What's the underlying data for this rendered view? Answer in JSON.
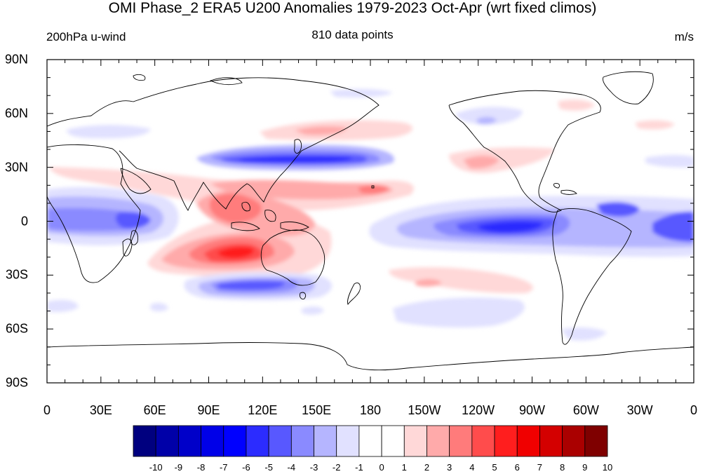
{
  "header": {
    "title": "OMI Phase_2 ERA5 U200 Anomalies 1979-2023 Oct-Apr (wrt fixed climos)",
    "left_label": "200hPa u-wind",
    "center_label": "810 data points",
    "right_label": "m/s"
  },
  "axes": {
    "lat_labels": [
      "90N",
      "60N",
      "30N",
      "0",
      "30S",
      "60S",
      "90S"
    ],
    "lon_labels": [
      "0",
      "30E",
      "60E",
      "90E",
      "120E",
      "150E",
      "180",
      "150W",
      "120W",
      "90W",
      "60W",
      "30W",
      "0"
    ]
  },
  "colorbar": {
    "labels": [
      "-10",
      "-9",
      "-8",
      "-7",
      "-6",
      "-5",
      "-4",
      "-3",
      "-2",
      "-1",
      "0",
      "1",
      "2",
      "3",
      "4",
      "5",
      "6",
      "7",
      "8",
      "9",
      "10"
    ],
    "colors": [
      "#00007f",
      "#0000a8",
      "#0000c9",
      "#0000e8",
      "#0000ff",
      "#2c2cff",
      "#5858ff",
      "#8a8aff",
      "#b5b5ff",
      "#e1e1ff",
      "#ffffff",
      "#ffffff",
      "#ffd8d8",
      "#ffaaaa",
      "#ff7b7b",
      "#ff4c4c",
      "#ff1e1e",
      "#f00000",
      "#d40000",
      "#aa0000",
      "#7f0000"
    ]
  },
  "map": {
    "projection": "cylindrical-equidistant",
    "lon_range": [
      0,
      360
    ],
    "lat_range": [
      -90,
      90
    ]
  }
}
